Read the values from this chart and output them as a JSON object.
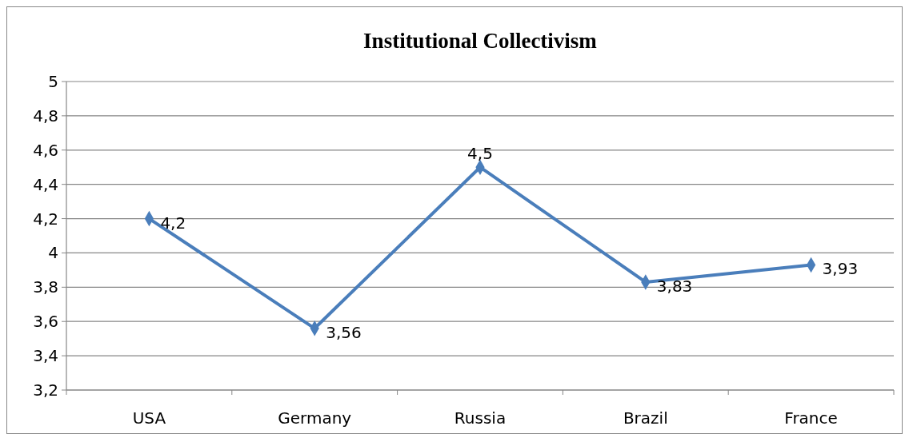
{
  "chart_data": {
    "type": "line",
    "title": "Institutional Collectivism",
    "categories": [
      "USA",
      "Germany",
      "Russia",
      "Brazil",
      "France"
    ],
    "series": [
      {
        "color": "#4a7ebb",
        "values": [
          4.2,
          3.56,
          4.5,
          3.83,
          3.93
        ],
        "value_labels": [
          "4,2",
          "3,56",
          "4,5",
          "3,83",
          "3,93"
        ]
      }
    ],
    "ylim": [
      3.2,
      5
    ],
    "yticks": [
      {
        "value": 3.2,
        "label": "3,2"
      },
      {
        "value": 3.4,
        "label": "3,4"
      },
      {
        "value": 3.6,
        "label": "3,6"
      },
      {
        "value": 3.8,
        "label": "3,8"
      },
      {
        "value": 4,
        "label": "4"
      },
      {
        "value": 4.2,
        "label": "4,2"
      },
      {
        "value": 4.4,
        "label": "4,4"
      },
      {
        "value": 4.6,
        "label": "4,6"
      },
      {
        "value": 4.8,
        "label": "4,8"
      },
      {
        "value": 5,
        "label": "5"
      }
    ],
    "grid": "y",
    "marker": "diamond",
    "line_style": "solid"
  }
}
